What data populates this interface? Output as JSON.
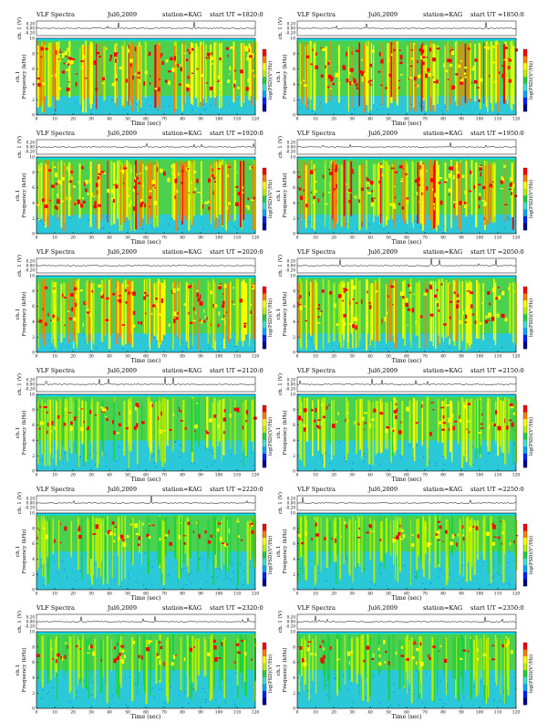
{
  "chart_data": [
    {
      "type": "heatmap",
      "panel": "ch1",
      "title": "VLF Spectra",
      "date": "Jul6,2009",
      "station": "station=KAG",
      "start": "start UT =1820:0",
      "ch_label": "ch. 1 (V)",
      "ylabel": "Frequency (kHz)",
      "xlabel": "Time (sec)",
      "cbar_label": "log(PSD)(V²/Hz)",
      "xlim": [
        0,
        120
      ],
      "ylim": [
        0,
        10
      ],
      "ch_ticks": [
        "0.20",
        "0.00",
        "-0.20"
      ],
      "y_ticks": [
        "0",
        "2",
        "4",
        "6",
        "8",
        "10"
      ],
      "x_ticks": [
        "0",
        "10",
        "20",
        "30",
        "40",
        "50",
        "60",
        "70",
        "80",
        "90",
        "100",
        "110",
        "120"
      ],
      "band": [
        2.5,
        10
      ],
      "intensity": 0.88
    },
    {
      "type": "heatmap",
      "panel": "ch1",
      "title": "VLF Spectra",
      "date": "Jul6,2009",
      "station": "station=KAG",
      "start": "start UT =1850:0",
      "ch_label": "ch. 1 (V)",
      "ylabel": "Frequency (kHz)",
      "xlabel": "Time (sec)",
      "cbar_label": "log(PSD)(V²/Hz)",
      "xlim": [
        0,
        120
      ],
      "ylim": [
        0,
        10
      ],
      "ch_ticks": [
        "0.20",
        "0.00",
        "-0.20"
      ],
      "y_ticks": [
        "0",
        "2",
        "4",
        "6",
        "8",
        "10"
      ],
      "x_ticks": [
        "0",
        "10",
        "20",
        "30",
        "40",
        "50",
        "60",
        "70",
        "80",
        "90",
        "100",
        "110",
        "120"
      ],
      "band": [
        2.5,
        10
      ],
      "intensity": 0.88
    },
    {
      "type": "heatmap",
      "panel": "ch1",
      "title": "VLF Spectra",
      "date": "Jul6,2009",
      "station": "station=KAG",
      "start": "start UT =1920:0",
      "ch_label": "ch. 1 (V)",
      "ylabel": "Frequency (kHz)",
      "xlabel": "Time (sec)",
      "cbar_label": "log(PSD)(V²/Hz)",
      "xlim": [
        0,
        120
      ],
      "ylim": [
        0,
        10
      ],
      "ch_ticks": [
        "0.20",
        "0.00",
        "-0.20"
      ],
      "y_ticks": [
        "0",
        "2",
        "4",
        "6",
        "8",
        "10"
      ],
      "x_ticks": [
        "0",
        "10",
        "20",
        "30",
        "40",
        "50",
        "60",
        "70",
        "80",
        "90",
        "100",
        "110",
        "120"
      ],
      "band": [
        2.5,
        10
      ],
      "intensity": 0.92
    },
    {
      "type": "heatmap",
      "panel": "ch1",
      "title": "VLF Spectra",
      "date": "Jul6,2009",
      "station": "station=KAG",
      "start": "start UT =1950:0",
      "ch_label": "ch. 1 (V)",
      "ylabel": "Frequency (kHz)",
      "xlabel": "Time (sec)",
      "cbar_label": "log(PSD)(V²/Hz)",
      "xlim": [
        0,
        120
      ],
      "ylim": [
        0,
        10
      ],
      "ch_ticks": [
        "0.20",
        "0.00",
        "-0.20"
      ],
      "y_ticks": [
        "0",
        "2",
        "4",
        "6",
        "8",
        "10"
      ],
      "x_ticks": [
        "0",
        "10",
        "20",
        "30",
        "40",
        "50",
        "60",
        "70",
        "80",
        "90",
        "100",
        "110",
        "120"
      ],
      "band": [
        2.5,
        10
      ],
      "intensity": 0.9
    },
    {
      "type": "heatmap",
      "panel": "ch1",
      "title": "VLF Spectra",
      "date": "Jul6,2009",
      "station": "station=KAG",
      "start": "start UT =2020:0",
      "ch_label": "ch. 1 (V)",
      "ylabel": "Frequency (kHz)",
      "xlabel": "Time (sec)",
      "cbar_label": "log(PSD)(V²/Hz)",
      "xlim": [
        0,
        120
      ],
      "ylim": [
        0,
        10
      ],
      "ch_ticks": [
        "0.20",
        "0.00",
        "-0.20"
      ],
      "y_ticks": [
        "0",
        "2",
        "4",
        "6",
        "8",
        "10"
      ],
      "x_ticks": [
        "0",
        "10",
        "20",
        "30",
        "40",
        "50",
        "60",
        "70",
        "80",
        "90",
        "100",
        "110",
        "120"
      ],
      "band": [
        2.5,
        10
      ],
      "intensity": 0.8
    },
    {
      "type": "heatmap",
      "panel": "ch1",
      "title": "VLF Spectra",
      "date": "Jul6,2009",
      "station": "station=KAG",
      "start": "start UT =2050:0",
      "ch_label": "ch. 1 (V)",
      "ylabel": "Frequency (kHz)",
      "xlabel": "Time (sec)",
      "cbar_label": "log(PSD)(V²/Hz)",
      "xlim": [
        0,
        120
      ],
      "ylim": [
        0,
        10
      ],
      "ch_ticks": [
        "0.20",
        "0.00",
        "-0.20"
      ],
      "y_ticks": [
        "0",
        "2",
        "4",
        "6",
        "8",
        "10"
      ],
      "x_ticks": [
        "0",
        "10",
        "20",
        "30",
        "40",
        "50",
        "60",
        "70",
        "80",
        "90",
        "100",
        "110",
        "120"
      ],
      "band": [
        2.5,
        10
      ],
      "intensity": 0.72
    },
    {
      "type": "heatmap",
      "panel": "ch1",
      "title": "VLF Spectra",
      "date": "Jul6,2009",
      "station": "station=KAG",
      "start": "start UT =2120:0",
      "ch_label": "ch. 1 (V)",
      "ylabel": "Frequency (kHz)",
      "xlabel": "Time (sec)",
      "cbar_label": "log(PSD)(V²/Hz)",
      "xlim": [
        0,
        120
      ],
      "ylim": [
        0,
        10
      ],
      "ch_ticks": [
        "0.20",
        "0.00",
        "-0.20"
      ],
      "y_ticks": [
        "0",
        "2",
        "4",
        "6",
        "8",
        "10"
      ],
      "x_ticks": [
        "0",
        "10",
        "20",
        "30",
        "40",
        "50",
        "60",
        "70",
        "80",
        "90",
        "100",
        "110",
        "120"
      ],
      "band": [
        4,
        10
      ],
      "intensity": 0.5
    },
    {
      "type": "heatmap",
      "panel": "ch1",
      "title": "VLF Spectra",
      "date": "Jul6,2009",
      "station": "station=KAG",
      "start": "start UT =2150:0",
      "ch_label": "ch. 1 (V)",
      "ylabel": "Frequency (kHz)",
      "xlabel": "Time (sec)",
      "cbar_label": "log(PSD)(V²/Hz)",
      "xlim": [
        0,
        120
      ],
      "ylim": [
        0,
        10
      ],
      "ch_ticks": [
        "0.20",
        "0.00",
        "-0.20"
      ],
      "y_ticks": [
        "0",
        "2",
        "4",
        "6",
        "8",
        "10"
      ],
      "x_ticks": [
        "0",
        "10",
        "20",
        "30",
        "40",
        "50",
        "60",
        "70",
        "80",
        "90",
        "100",
        "110",
        "120"
      ],
      "band": [
        4,
        10
      ],
      "intensity": 0.55
    },
    {
      "type": "heatmap",
      "panel": "ch1",
      "title": "VLF Spectra",
      "date": "Jul6,2009",
      "station": "station=KAG",
      "start": "start UT =2220:0",
      "ch_label": "ch. 1 (V)",
      "ylabel": "Frequency (kHz)",
      "xlabel": "Time (sec)",
      "cbar_label": "log(PSD)(V²/Hz)",
      "xlim": [
        0,
        120
      ],
      "ylim": [
        0,
        10
      ],
      "ch_ticks": [
        "0.20",
        "0.00",
        "-0.20"
      ],
      "y_ticks": [
        "0",
        "2",
        "4",
        "6",
        "8",
        "10"
      ],
      "x_ticks": [
        "0",
        "10",
        "20",
        "30",
        "40",
        "50",
        "60",
        "70",
        "80",
        "90",
        "100",
        "110",
        "120"
      ],
      "band": [
        5,
        10
      ],
      "intensity": 0.42
    },
    {
      "type": "heatmap",
      "panel": "ch1",
      "title": "VLF Spectra",
      "date": "Jul6,2009",
      "station": "station=KAG",
      "start": "start UT =2250:0",
      "ch_label": "ch. 1 (V)",
      "ylabel": "Frequency (kHz)",
      "xlabel": "Time (sec)",
      "cbar_label": "log(PSD)(V²/Hz)",
      "xlim": [
        0,
        120
      ],
      "ylim": [
        0,
        10
      ],
      "ch_ticks": [
        "0.20",
        "0.00",
        "-0.20"
      ],
      "y_ticks": [
        "0",
        "2",
        "4",
        "6",
        "8",
        "10"
      ],
      "x_ticks": [
        "0",
        "10",
        "20",
        "30",
        "40",
        "50",
        "60",
        "70",
        "80",
        "90",
        "100",
        "110",
        "120"
      ],
      "band": [
        5,
        10
      ],
      "intensity": 0.42
    },
    {
      "type": "heatmap",
      "panel": "ch1",
      "title": "VLF Spectra",
      "date": "Jul6,2009",
      "station": "station=KAG",
      "start": "start UT =2320:0",
      "ch_label": "ch. 1 (V)",
      "ylabel": "Frequency (kHz)",
      "xlabel": "Time (sec)",
      "cbar_label": "log(PSD)(V²/Hz)",
      "xlim": [
        0,
        120
      ],
      "ylim": [
        0,
        10
      ],
      "ch_ticks": [
        "0.20",
        "0.00",
        "-0.20"
      ],
      "y_ticks": [
        "0",
        "2",
        "4",
        "6",
        "8",
        "10"
      ],
      "x_ticks": [
        "0",
        "10",
        "20",
        "30",
        "40",
        "50",
        "60",
        "70",
        "80",
        "90",
        "100",
        "110",
        "120"
      ],
      "band": [
        5,
        10
      ],
      "intensity": 0.38
    },
    {
      "type": "heatmap",
      "panel": "ch1",
      "title": "VLF Spectra",
      "date": "Jul6,2009",
      "station": "station=KAG",
      "start": "start UT =2350:0",
      "ch_label": "ch. 1 (V)",
      "ylabel": "Frequency (kHz)",
      "xlabel": "Time (sec)",
      "cbar_label": "log(PSD)(V²/Hz)",
      "xlim": [
        0,
        120
      ],
      "ylim": [
        0,
        10
      ],
      "ch_ticks": [
        "0.20",
        "0.00",
        "-0.20"
      ],
      "y_ticks": [
        "0",
        "2",
        "4",
        "6",
        "8",
        "10"
      ],
      "x_ticks": [
        "0",
        "10",
        "20",
        "30",
        "40",
        "50",
        "60",
        "70",
        "80",
        "90",
        "100",
        "110",
        "120"
      ],
      "band": [
        5,
        10
      ],
      "intensity": 0.4
    }
  ]
}
